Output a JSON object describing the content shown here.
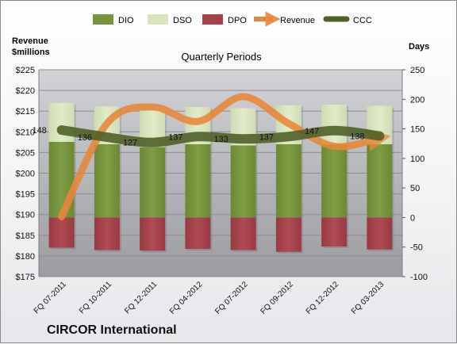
{
  "company": "CIRCOR International",
  "left_axis_title": [
    "Revenue",
    "$millions"
  ],
  "right_axis_title": "Days",
  "legend": [
    {
      "name": "DIO",
      "type": "bar",
      "color": "#77933c"
    },
    {
      "name": "DSO",
      "type": "bar",
      "color": "#d7e4bd"
    },
    {
      "name": "DPO",
      "type": "bar",
      "color": "#a7414a"
    },
    {
      "name": "Revenue",
      "type": "arrow-line",
      "color": "#e8873a"
    },
    {
      "name": "CCC",
      "type": "line",
      "color": "#4f6228"
    }
  ],
  "chart_data": {
    "type": "bar",
    "title": "Quarterly Periods",
    "categories": [
      "FQ 07-2011",
      "FQ 10-2011",
      "FQ 12-2011",
      "FQ 04-2012",
      "FQ 07-2012",
      "FQ 09-2012",
      "FQ 12-2012",
      "FQ 03-2013"
    ],
    "left_axis": {
      "label": "Revenue $millions",
      "min": 175,
      "max": 225,
      "step": 5,
      "ticks": [
        "$175",
        "$180",
        "$185",
        "$190",
        "$195",
        "$200",
        "$205",
        "$210",
        "$215",
        "$220",
        "$225"
      ]
    },
    "right_axis": {
      "label": "Days",
      "min": -100,
      "max": 250,
      "step": 50,
      "ticks": [
        "-100",
        "-50",
        "0",
        "50",
        "100",
        "150",
        "200",
        "250"
      ]
    },
    "series": [
      {
        "name": "DIO",
        "axis": "right",
        "values": [
          128,
          124,
          119,
          124,
          122,
          124,
          124,
          124
        ],
        "color": "#77933c"
      },
      {
        "name": "DSO",
        "axis": "right",
        "values": [
          66,
          64,
          63,
          63,
          63,
          66,
          67,
          65
        ],
        "color": "#d7e4bd"
      },
      {
        "name": "DPO",
        "axis": "right",
        "values": [
          -51,
          -55,
          -56,
          -53,
          -55,
          -58,
          -49,
          -54
        ],
        "color": "#a7414a"
      },
      {
        "name": "Revenue",
        "axis": "left",
        "values": [
          189.5,
          212,
          216,
          212.5,
          218.5,
          212,
          206.5,
          208.5
        ],
        "color": "#e8873a"
      },
      {
        "name": "CCC",
        "axis": "right",
        "values": [
          148,
          136,
          127,
          137,
          133,
          137,
          147,
          138
        ],
        "color": "#4f6228"
      }
    ],
    "ccc_labels": [
      "148",
      "136",
      "127",
      "137",
      "133",
      "137",
      "147",
      "138"
    ]
  }
}
